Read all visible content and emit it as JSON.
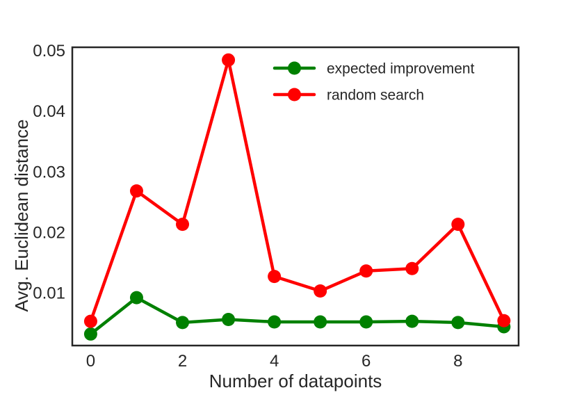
{
  "chart_data": {
    "type": "line",
    "title": "",
    "xlabel": "Number of datapoints",
    "ylabel": "Avg. Euclidean distance",
    "x": [
      0,
      1,
      2,
      3,
      4,
      5,
      6,
      7,
      8,
      9
    ],
    "series": [
      {
        "name": "expected improvement",
        "color": "#008000",
        "marker": "circle",
        "values": [
          0.0032,
          0.0092,
          0.0051,
          0.0056,
          0.0052,
          0.0052,
          0.0052,
          0.0053,
          0.0051,
          0.0044
        ]
      },
      {
        "name": "random search",
        "color": "#ff0000",
        "marker": "circle",
        "values": [
          0.0053,
          0.0268,
          0.0213,
          0.0484,
          0.0127,
          0.0103,
          0.0136,
          0.014,
          0.0213,
          0.0054
        ]
      }
    ],
    "xticks": [
      0,
      2,
      4,
      6,
      8
    ],
    "xtick_labels": [
      "0",
      "2",
      "4",
      "6",
      "8"
    ],
    "yticks": [
      0.01,
      0.02,
      0.03,
      0.04,
      0.05
    ],
    "ytick_labels": [
      "0.01",
      "0.02",
      "0.03",
      "0.04",
      "0.05"
    ],
    "xlim": [
      -0.4,
      9.32
    ],
    "ylim": [
      0.0013,
      0.0505
    ],
    "grid": false,
    "legend_position": "upper-right-inside",
    "axis_color": "#262626",
    "background_color": "#ffffff"
  }
}
